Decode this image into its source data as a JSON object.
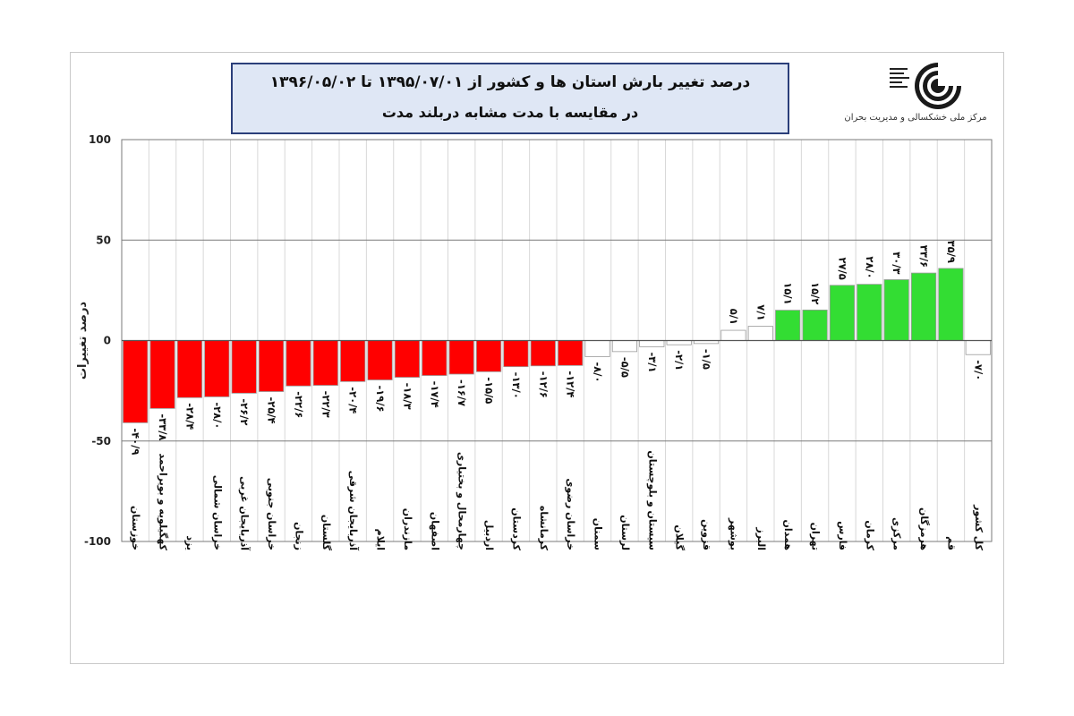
{
  "title": {
    "line1": "درصد تغییر بارش استان ها و کشور از   ۱۳۹۵/۰۷/۰۱   تا ۱۳۹۶/۰۵/۰۲",
    "line2": "در مقایسه با مدت مشابه دربلند مدت"
  },
  "organization": {
    "name": "مرکز ملی خشکسالی و مدیریت بحران"
  },
  "colors": {
    "negative": "#ff0000",
    "positive": "#33dd33",
    "neutral": "#ffffff",
    "border": "#9a9a9a"
  },
  "chart_data": {
    "type": "bar",
    "ylabel": "درصد تغییرات",
    "ylim": [
      -100,
      100
    ],
    "yticks": [
      100,
      50,
      0,
      -50,
      -100
    ],
    "ytick_labels": [
      "100",
      "50",
      "0",
      "-50",
      "-100"
    ],
    "grid": true,
    "categories": [
      "خوزستان",
      "کهگیلویه و بویراحمد",
      "یزد",
      "خراسان شمالی",
      "آذربایجان غربی",
      "خراسان جنوبی",
      "زنجان",
      "گلستان",
      "آذربایجان شرقی",
      "ایلام",
      "مازندران",
      "اصفهان",
      "چهارمحال و بختیاری",
      "اردبیل",
      "کردستان",
      "کرمانشاه",
      "خراسان رضوی",
      "سمنان",
      "لرستان",
      "سیستان و بلوچستان",
      "گیلان",
      "قزوین",
      "بوشهر",
      "البرز",
      "همدان",
      "تهران",
      "فارس",
      "کرمان",
      "مرکزی",
      "هرمزگان",
      "قم",
      "کل کشور"
    ],
    "values": [
      -40.9,
      -33.8,
      -28.4,
      -28.0,
      -26.2,
      -25.4,
      -22.6,
      -22.3,
      -20.4,
      -19.6,
      -18.3,
      -17.4,
      -16.7,
      -15.5,
      -13.0,
      -12.6,
      -12.4,
      -8.0,
      -5.5,
      -3.1,
      -2.1,
      -1.5,
      5.1,
      7.1,
      15.1,
      15.2,
      27.5,
      28.0,
      30.3,
      33.6,
      35.9,
      -7.0
    ],
    "value_labels": [
      "-۴۰/۹",
      "-۳۳/۸",
      "-۲۸/۴",
      "-۲۸/۰",
      "-۲۶/۲",
      "-۲۵/۴",
      "-۲۲/۶",
      "-۲۲/۳",
      "-۲۰/۴",
      "-۱۹/۶",
      "-۱۸/۳",
      "-۱۷/۴",
      "-۱۶/۷",
      "-۱۵/۵",
      "-۱۳/۰",
      "-۱۲/۶",
      "-۱۲/۴",
      "-۸/۰",
      "-۵/۵",
      "-۳/۱",
      "-۲/۱",
      "-۱/۵",
      "۵/۱",
      "۷/۱",
      "۱۵/۱",
      "۱۵/۲",
      "۲۷/۵",
      "۲۸/۰",
      "۳۰/۳",
      "۳۳/۶",
      "۳۵/۹",
      "-۷/۰"
    ]
  }
}
